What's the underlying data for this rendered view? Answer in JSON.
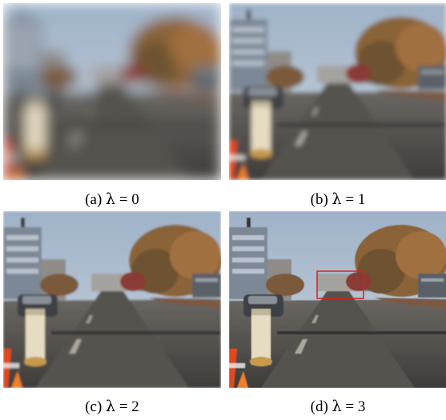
{
  "figure": {
    "panels": [
      {
        "id": "a",
        "label": "(a)",
        "symbol": "λ",
        "relation": "=",
        "value": "0"
      },
      {
        "id": "b",
        "label": "(b)",
        "symbol": "λ",
        "relation": "=",
        "value": "1"
      },
      {
        "id": "c",
        "label": "(c)",
        "symbol": "λ",
        "relation": "=",
        "value": "2"
      },
      {
        "id": "d",
        "label": "(d)",
        "symbol": "λ",
        "relation": "=",
        "value": "3"
      }
    ],
    "highlight_color": "#d62020"
  }
}
